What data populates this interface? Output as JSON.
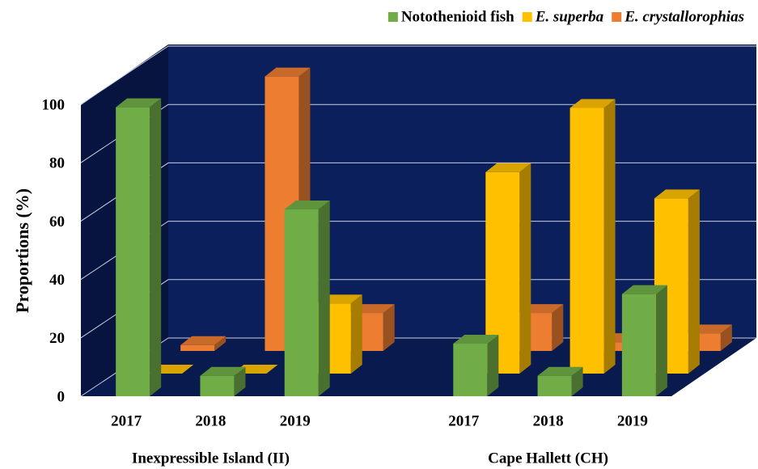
{
  "chart_data": {
    "type": "bar3d",
    "y_axis_label": "Proportions (%)",
    "categories": [
      "2017",
      "2018",
      "2019",
      "2017",
      "2018",
      "2019"
    ],
    "groups": [
      "Inexpressible Island (II)",
      "Cape Hallett (CH)"
    ],
    "series": [
      {
        "name": "Notothenioid fish",
        "color": "#70ad47",
        "italic": false,
        "values": [
          99,
          7,
          64,
          18,
          7,
          35
        ]
      },
      {
        "name": "E. superba",
        "color": "#ffc000",
        "italic": true,
        "values": [
          0,
          0,
          24,
          69,
          91,
          60
        ]
      },
      {
        "name": "E. crystallorophias",
        "color": "#ed7d31",
        "italic": true,
        "values": [
          2,
          94,
          13,
          13,
          3,
          6
        ]
      }
    ],
    "ylim": [
      0,
      100
    ],
    "yticks": [
      0,
      20,
      40,
      60,
      80,
      100
    ],
    "grid": true,
    "legend": "top-right"
  }
}
